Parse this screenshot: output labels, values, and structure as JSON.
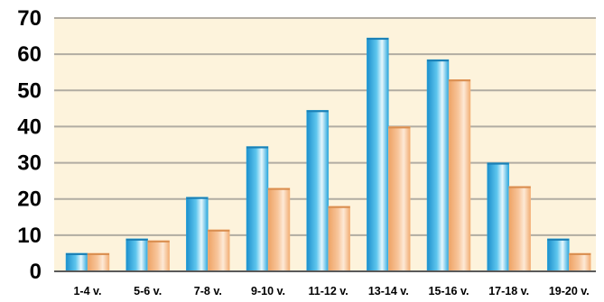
{
  "chart_data": {
    "type": "bar",
    "categories": [
      "1-4 v.",
      "5-6 v.",
      "7-8 v.",
      "9-10 v.",
      "11-12 v.",
      "13-14 v.",
      "15-16 v.",
      "17-18 v.",
      "19-20 v."
    ],
    "series": [
      {
        "values": [
          5,
          9,
          20.5,
          34.5,
          44.5,
          64.5,
          58.5,
          30,
          9
        ]
      },
      {
        "values": [
          5,
          8.5,
          11.5,
          23,
          18,
          40,
          53,
          23.5,
          5
        ]
      }
    ],
    "ylim": [
      0,
      70
    ],
    "yticks": [
      "0",
      "10",
      "20",
      "30",
      "40",
      "50",
      "60",
      "70"
    ],
    "grid": true,
    "colors": {
      "series_1": "#29a9df",
      "series_2": "#f6b985",
      "plot_background": "#fdf3dc",
      "grid": "#b1aca2"
    }
  }
}
